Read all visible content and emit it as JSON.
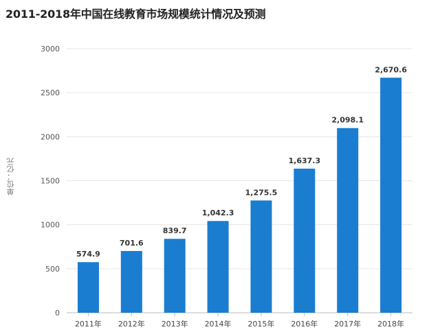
{
  "chart_data": {
    "type": "bar",
    "title": "2011-2018年中国在线教育市场规模统计情况及预测",
    "ylabel": "单位：亿元",
    "xlabel": "",
    "categories": [
      "2011年",
      "2012年",
      "2013年",
      "2014年",
      "2015年",
      "2016年",
      "2017年",
      "2018年"
    ],
    "values": [
      574.9,
      701.6,
      839.7,
      1042.3,
      1275.5,
      1637.3,
      2098.1,
      2670.6
    ],
    "data_labels": [
      "574.9",
      "701.6",
      "839.7",
      "1,042.3",
      "1,275.5",
      "1,637.3",
      "2,098.1",
      "2,670.6"
    ],
    "yticks": [
      "0",
      "500",
      "1000",
      "1500",
      "2000",
      "2500",
      "3000"
    ],
    "ylim": [
      0,
      3000
    ],
    "grid": true,
    "bar_color": "#1a7dd0",
    "grid_color": "#e6e6e6",
    "axis_color": "#bbbbbb"
  }
}
